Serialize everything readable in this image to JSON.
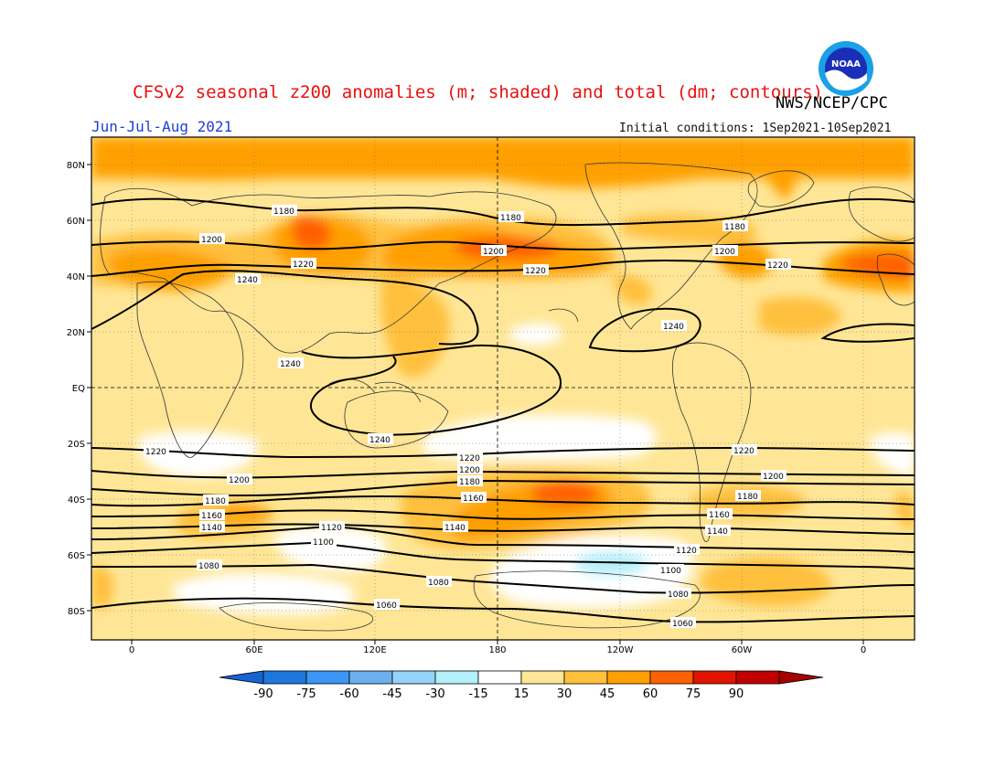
{
  "title": "CFSv2 seasonal z200 anomalies (m; shaded) and total (dm; contours)",
  "agency": "NWS/NCEP/CPC",
  "period": "Jun-Jul-Aug 2021",
  "initial_conditions": "Initial conditions: 1Sep2021-10Sep2021",
  "logo_text": "NOAA",
  "lat_labels": [
    "80N",
    "60N",
    "40N",
    "20N",
    "EQ",
    "20S",
    "40S",
    "60S",
    "80S"
  ],
  "lon_labels": [
    "0",
    "60E",
    "120E",
    "180",
    "120W",
    "60W",
    "0"
  ],
  "colorbar": {
    "labels": [
      "-90",
      "-75",
      "-60",
      "-45",
      "-30",
      "-15",
      "15",
      "30",
      "45",
      "60",
      "75",
      "90"
    ],
    "colors": [
      "#1464d2",
      "#1e78dc",
      "#3c96f5",
      "#6eaff0",
      "#96d2fa",
      "#b4f0fa",
      "#ffffff",
      "#ffe696",
      "#ffc03c",
      "#ffa000",
      "#ff6000",
      "#e11400",
      "#c00000",
      "#a50000"
    ]
  },
  "contour_labels": [
    "1180",
    "1200",
    "1220",
    "1240",
    "1180",
    "1200",
    "1220",
    "1180",
    "1200",
    "1220",
    "1240",
    "1240",
    "1240",
    "1220",
    "1200",
    "1180",
    "1160",
    "1140",
    "1120",
    "1100",
    "1080",
    "1220",
    "1200",
    "1180",
    "1160",
    "1140",
    "1080",
    "1060",
    "1220",
    "1200",
    "1180",
    "1160",
    "1140",
    "1120",
    "1100",
    "1080",
    "1060"
  ],
  "contour_levels_dm": [
    1060,
    1080,
    1100,
    1120,
    1140,
    1160,
    1180,
    1200,
    1220,
    1240
  ],
  "shading_levels_m": [
    -90,
    -75,
    -60,
    -45,
    -30,
    -15,
    15,
    30,
    45,
    60,
    75,
    90
  ]
}
